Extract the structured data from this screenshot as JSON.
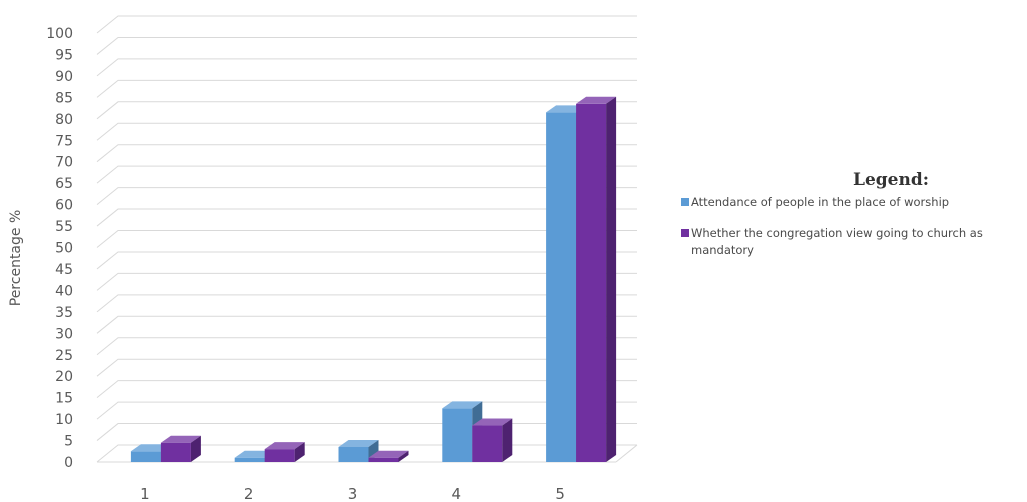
{
  "chart_data": {
    "type": "bar",
    "categories": [
      "1",
      "2",
      "3",
      "4",
      "5"
    ],
    "series": [
      {
        "name": "Attendance of people in the place of worship",
        "values": [
          2.5,
          1,
          3.5,
          12.5,
          81.5
        ],
        "color": "#5b9bd5"
      },
      {
        "name": "Whether the congregation view going to church as mandatory",
        "values": [
          4.5,
          3,
          1,
          8.5,
          83.5
        ],
        "color": "#7030a0"
      }
    ],
    "ylabel": "Percentage %",
    "xlabel": "",
    "ylim": [
      0,
      100
    ],
    "yticks": [
      0,
      5,
      10,
      15,
      20,
      25,
      30,
      35,
      40,
      45,
      50,
      55,
      60,
      65,
      70,
      75,
      80,
      85,
      90,
      95,
      100
    ],
    "grid": true,
    "legend": {
      "title": "Legend:",
      "position": "right"
    }
  }
}
